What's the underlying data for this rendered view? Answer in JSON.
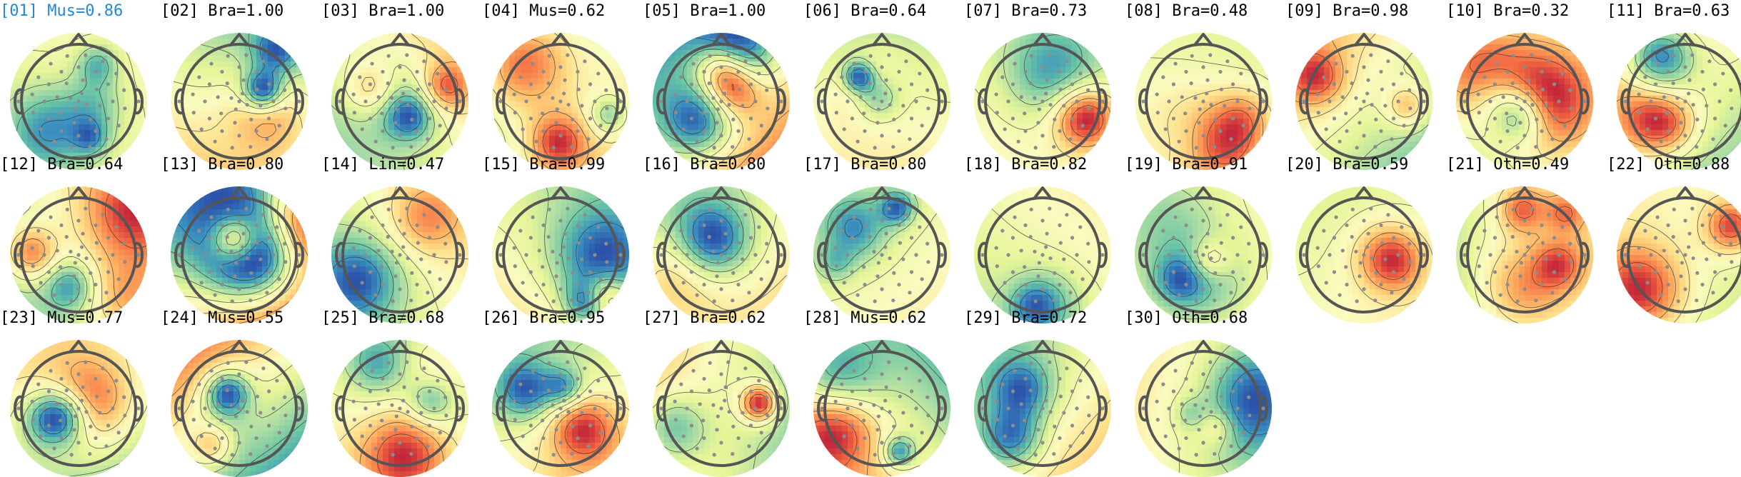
{
  "chart_data": {
    "type": "topomap-grid",
    "title": "",
    "selected_component": "[01]",
    "category_codes": [
      "Bra",
      "Mus",
      "Lin",
      "Oth"
    ],
    "components": [
      {
        "id": "01",
        "label": "[01] Mus=0.86",
        "category": "Mus",
        "prob": 0.86
      },
      {
        "id": "02",
        "label": "[02] Bra=1.00",
        "category": "Bra",
        "prob": 1.0
      },
      {
        "id": "03",
        "label": "[03] Bra=1.00",
        "category": "Bra",
        "prob": 1.0
      },
      {
        "id": "04",
        "label": "[04] Mus=0.62",
        "category": "Mus",
        "prob": 0.62
      },
      {
        "id": "05",
        "label": "[05] Bra=1.00",
        "category": "Bra",
        "prob": 1.0
      },
      {
        "id": "06",
        "label": "[06] Bra=0.64",
        "category": "Bra",
        "prob": 0.64
      },
      {
        "id": "07",
        "label": "[07] Bra=0.73",
        "category": "Bra",
        "prob": 0.73
      },
      {
        "id": "08",
        "label": "[08] Bra=0.48",
        "category": "Bra",
        "prob": 0.48
      },
      {
        "id": "09",
        "label": "[09] Bra=0.98",
        "category": "Bra",
        "prob": 0.98
      },
      {
        "id": "10",
        "label": "[10] Bra=0.32",
        "category": "Bra",
        "prob": 0.32
      },
      {
        "id": "11",
        "label": "[11] Bra=0.63",
        "category": "Bra",
        "prob": 0.63
      },
      {
        "id": "12",
        "label": "[12] Bra=0.64",
        "category": "Bra",
        "prob": 0.64
      },
      {
        "id": "13",
        "label": "[13] Bra=0.80",
        "category": "Bra",
        "prob": 0.8
      },
      {
        "id": "14",
        "label": "[14] Lin=0.47",
        "category": "Lin",
        "prob": 0.47
      },
      {
        "id": "15",
        "label": "[15] Bra=0.99",
        "category": "Bra",
        "prob": 0.99
      },
      {
        "id": "16",
        "label": "[16] Bra=0.80",
        "category": "Bra",
        "prob": 0.8
      },
      {
        "id": "17",
        "label": "[17] Bra=0.80",
        "category": "Bra",
        "prob": 0.8
      },
      {
        "id": "18",
        "label": "[18] Bra=0.82",
        "category": "Bra",
        "prob": 0.82
      },
      {
        "id": "19",
        "label": "[19] Bra=0.91",
        "category": "Bra",
        "prob": 0.91
      },
      {
        "id": "20",
        "label": "[20] Bra=0.59",
        "category": "Bra",
        "prob": 0.59
      },
      {
        "id": "21",
        "label": "[21] Oth=0.49",
        "category": "Oth",
        "prob": 0.49
      },
      {
        "id": "22",
        "label": "[22] Oth=0.88",
        "category": "Oth",
        "prob": 0.88
      },
      {
        "id": "23",
        "label": "[23] Mus=0.77",
        "category": "Mus",
        "prob": 0.77
      },
      {
        "id": "24",
        "label": "[24] Mus=0.55",
        "category": "Mus",
        "prob": 0.55
      },
      {
        "id": "25",
        "label": "[25] Bra=0.68",
        "category": "Bra",
        "prob": 0.68
      },
      {
        "id": "26",
        "label": "[26] Bra=0.95",
        "category": "Bra",
        "prob": 0.95
      },
      {
        "id": "27",
        "label": "[27] Bra=0.62",
        "category": "Bra",
        "prob": 0.62
      },
      {
        "id": "28",
        "label": "[28] Mus=0.62",
        "category": "Mus",
        "prob": 0.62
      },
      {
        "id": "29",
        "label": "[29] Bra=0.72",
        "category": "Bra",
        "prob": 0.72
      },
      {
        "id": "30",
        "label": "[30] Oth=0.68",
        "category": "Oth",
        "prob": 0.68
      }
    ]
  },
  "colors": {
    "title_default": "#000000",
    "title_selected": "#1f8ad6",
    "head_outline": "#555555",
    "sensor_dot": "#8c8c8c",
    "contour": "#333333",
    "colormap": [
      "#2b4fa8",
      "#3a8fc0",
      "#66c2a5",
      "#abdda4",
      "#e6f598",
      "#fbfbc0",
      "#fee08b",
      "#fdae61",
      "#f46d43",
      "#c2243a"
    ]
  }
}
